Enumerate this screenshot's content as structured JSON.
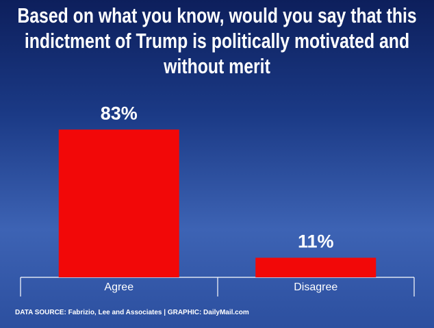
{
  "chart_data": {
    "type": "bar",
    "title": "Based on what you know, would you say that this indictment of Trump is politically motivated and without merit",
    "categories": [
      "Agree",
      "Disagree"
    ],
    "values": [
      83,
      11
    ],
    "value_labels": [
      "83%",
      "11%"
    ],
    "color": "#f20808",
    "source": "DATA SOURCE: Fabrizio, Lee and Associates | GRAPHIC: DailyMail.com"
  }
}
